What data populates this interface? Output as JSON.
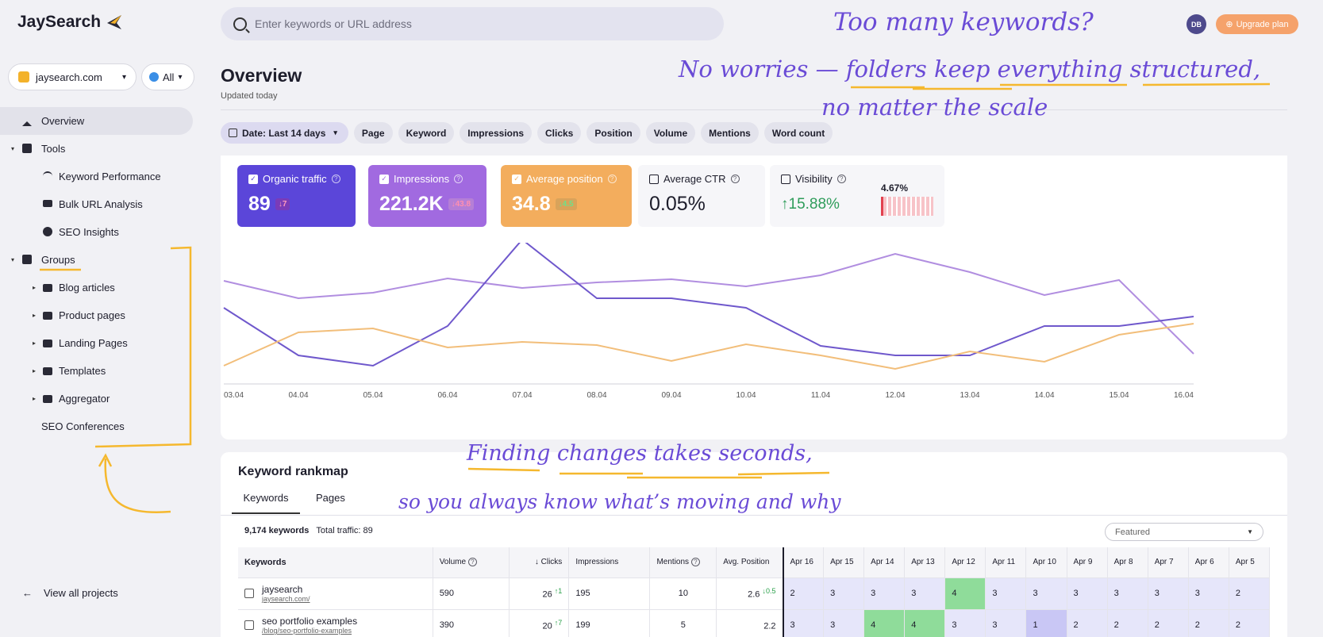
{
  "logo": {
    "text": "JaySearch"
  },
  "project_select": {
    "value": "jaysearch.com"
  },
  "region_select": {
    "value": "All"
  },
  "nav": {
    "overview": "Overview",
    "tools": "Tools",
    "keyword_performance": "Keyword Performance",
    "bulk_url": "Bulk URL Analysis",
    "seo_insights": "SEO Insights",
    "groups": "Groups",
    "blog_articles": "Blog articles",
    "product_pages": "Product pages",
    "landing_pages": "Landing Pages",
    "templates": "Templates",
    "aggregator": "Aggregator",
    "seo_conferences": "SEO Conferences",
    "view_all": "View all projects"
  },
  "search": {
    "placeholder": "Enter keywords or URL address"
  },
  "user": {
    "initials": "DB",
    "upgrade": "Upgrade plan"
  },
  "page": {
    "title": "Overview",
    "updated": "Updated today"
  },
  "filters": {
    "date": "Date: Last 14 days",
    "page": "Page",
    "keyword": "Keyword",
    "impressions": "Impressions",
    "clicks": "Clicks",
    "position": "Position",
    "volume": "Volume",
    "mentions": "Mentions",
    "word_count": "Word count"
  },
  "metrics": {
    "organic": {
      "label": "Organic traffic",
      "value": "89",
      "delta": "↓7"
    },
    "impressions": {
      "label": "Impressions",
      "value": "221.2K",
      "delta": "↓43.8"
    },
    "avg_position": {
      "label": "Average position",
      "value": "34.8",
      "delta": "↓4.5"
    },
    "ctr": {
      "label": "Average CTR",
      "value": "0.05%"
    },
    "visibility": {
      "label": "Visibility",
      "value": "↑15.88%",
      "spark": "4.67%"
    }
  },
  "chart_data": {
    "type": "line",
    "x": [
      "03.04",
      "04.04",
      "05.04",
      "06.04",
      "07.04",
      "08.04",
      "09.04",
      "10.04",
      "11.04",
      "12.04",
      "13.04",
      "14.04",
      "15.04",
      "16.04"
    ],
    "series": [
      {
        "color": "#b18ee0",
        "values": [
          130,
          108,
          115,
          133,
          121,
          128,
          132,
          123,
          137,
          164,
          141,
          112,
          131,
          38
        ]
      },
      {
        "color": "#6f58cc",
        "values": [
          96,
          36,
          23,
          73,
          182,
          108,
          108,
          96,
          48,
          36,
          36,
          73,
          73,
          85
        ]
      },
      {
        "color": "#f2be7a",
        "values": [
          23,
          65,
          70,
          46,
          53,
          49,
          29,
          50,
          36,
          19,
          41,
          28,
          62,
          76
        ]
      }
    ],
    "grid": false
  },
  "rankmap": {
    "title": "Keyword rankmap",
    "tabs": [
      "Keywords",
      "Pages"
    ],
    "count": "9,174 keywords",
    "total": "Total traffic: 89",
    "sort": "Featured",
    "headers": [
      "Keywords",
      "Volume",
      "↓ Clicks",
      "Impressions",
      "Mentions",
      "Avg. Position"
    ],
    "days": [
      "Apr 16",
      "Apr 15",
      "Apr 14",
      "Apr 13",
      "Apr 12",
      "Apr 11",
      "Apr 10",
      "Apr 9",
      "Apr 8",
      "Apr 7",
      "Apr 6",
      "Apr 5"
    ],
    "rows": [
      {
        "kw": "jaysearch",
        "url": "jaysearch.com/",
        "volume": "590",
        "clicks": "26",
        "clicks_delta": "↑1",
        "impr": "195",
        "mentions": "10",
        "pos": "2.6",
        "pos_delta": "↓0.5",
        "ranks": [
          "2",
          "3",
          "3",
          "3",
          "4",
          "3",
          "3",
          "3",
          "3",
          "3",
          "3",
          "2"
        ]
      },
      {
        "kw": "seo portfolio examples",
        "url": "/blog/seo-portfolio-examples",
        "volume": "390",
        "clicks": "20",
        "clicks_delta": "↑7",
        "impr": "199",
        "mentions": "5",
        "pos": "2.2",
        "pos_delta": "",
        "ranks": [
          "3",
          "3",
          "4",
          "4",
          "3",
          "3",
          "1",
          "2",
          "2",
          "2",
          "2",
          "2"
        ]
      }
    ]
  },
  "annotations": {
    "line1": "Too many keywords?",
    "line2": "No worries — folders keep everything structured,",
    "line3": "no matter the scale",
    "line4": "Finding changes takes seconds,",
    "line5": "so you always know what’s moving and why"
  }
}
